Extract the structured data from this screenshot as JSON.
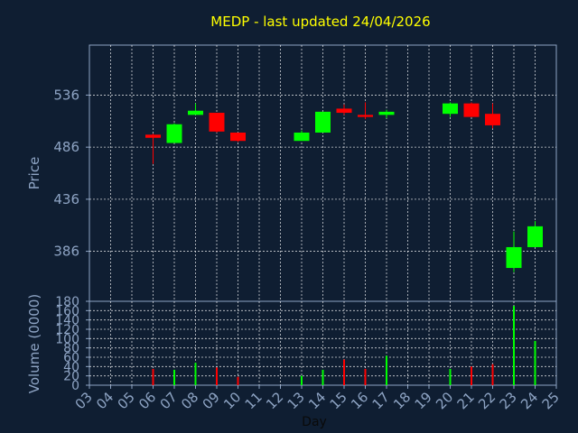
{
  "chart_data": {
    "type": "candlestick",
    "title": "MEDP - last updated 24/04/2026",
    "xlabel": "Day",
    "price_ylabel": "Price",
    "volume_ylabel": "Volume (0000)",
    "x_ticks": [
      "03",
      "04",
      "05",
      "06",
      "07",
      "08",
      "09",
      "10",
      "11",
      "12",
      "13",
      "14",
      "15",
      "16",
      "17",
      "18",
      "19",
      "20",
      "21",
      "22",
      "23",
      "24",
      "25"
    ],
    "price_ticks": [
      386,
      436,
      486,
      536
    ],
    "price_ylim": [
      338,
      584
    ],
    "volume_ticks": [
      0,
      20,
      40,
      60,
      80,
      100,
      120,
      140,
      160,
      180
    ],
    "volume_ylim": [
      0,
      180
    ],
    "colors": {
      "up": "#00ff00",
      "down": "#ff0000",
      "background": "#0f1e32",
      "grid": "#ffffff"
    },
    "candles": [
      {
        "day": "06",
        "open": 498,
        "high": 499,
        "low": 470,
        "close": 495,
        "volume": 35
      },
      {
        "day": "07",
        "open": 490,
        "high": 509,
        "low": 490,
        "close": 508,
        "volume": 33
      },
      {
        "day": "08",
        "open": 517,
        "high": 528,
        "low": 517,
        "close": 521,
        "volume": 48
      },
      {
        "day": "09",
        "open": 519,
        "high": 519,
        "low": 500,
        "close": 501,
        "volume": 38
      },
      {
        "day": "10",
        "open": 500,
        "high": 500,
        "low": 491,
        "close": 492,
        "volume": 18
      },
      {
        "day": "13",
        "open": 492,
        "high": 502,
        "low": 492,
        "close": 500,
        "volume": 20
      },
      {
        "day": "14",
        "open": 500,
        "high": 520,
        "low": 500,
        "close": 520,
        "volume": 33
      },
      {
        "day": "15",
        "open": 523,
        "high": 527,
        "low": 517,
        "close": 519,
        "volume": 55
      },
      {
        "day": "16",
        "open": 517,
        "high": 529,
        "low": 513,
        "close": 515,
        "volume": 35
      },
      {
        "day": "17",
        "open": 517,
        "high": 522,
        "low": 514,
        "close": 520,
        "volume": 63
      },
      {
        "day": "20",
        "open": 518,
        "high": 529,
        "low": 515,
        "close": 528,
        "volume": 35
      },
      {
        "day": "21",
        "open": 528,
        "high": 529,
        "low": 515,
        "close": 515,
        "volume": 40
      },
      {
        "day": "22",
        "open": 518,
        "high": 528,
        "low": 504,
        "close": 507,
        "volume": 45
      },
      {
        "day": "23",
        "open": 370,
        "high": 405,
        "low": 366,
        "close": 390,
        "volume": 170
      },
      {
        "day": "24",
        "open": 390,
        "high": 415,
        "low": 390,
        "close": 410,
        "volume": 95
      }
    ]
  }
}
